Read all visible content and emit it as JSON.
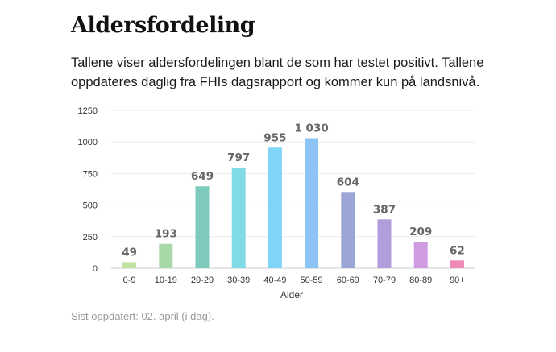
{
  "page": {
    "title": "Aldersfordeling",
    "intro": "Tallene viser aldersfordelingen blant de som har testet positivt. Tallene oppdateres daglig fra FHIs dagsrapport og kommer kun på landsnivå.",
    "footnote": "Sist oppdatert: 02. april (i dag)."
  },
  "chart_data": {
    "type": "bar",
    "xlabel": "Alder",
    "ylabel": "",
    "ylim": [
      0,
      1250
    ],
    "yticks": [
      0,
      250,
      500,
      750,
      1000,
      1250
    ],
    "ytick_labels": [
      "0",
      "250",
      "500",
      "750",
      "1000",
      "1250"
    ],
    "grid": true,
    "categories": [
      "0-9",
      "10-19",
      "20-29",
      "30-39",
      "40-49",
      "50-59",
      "60-69",
      "70-79",
      "80-89",
      "90+"
    ],
    "values": [
      49,
      193,
      649,
      797,
      955,
      1030,
      604,
      387,
      209,
      62
    ],
    "value_labels": [
      "49",
      "193",
      "649",
      "797",
      "955",
      "1 030",
      "604",
      "387",
      "209",
      "62"
    ],
    "colors": [
      "#c1e3a2",
      "#a6d9a6",
      "#7ecbbe",
      "#80dbe6",
      "#7fd4f7",
      "#8cc5f5",
      "#9ba6d6",
      "#b09edc",
      "#d19be2",
      "#f08bb5"
    ]
  }
}
